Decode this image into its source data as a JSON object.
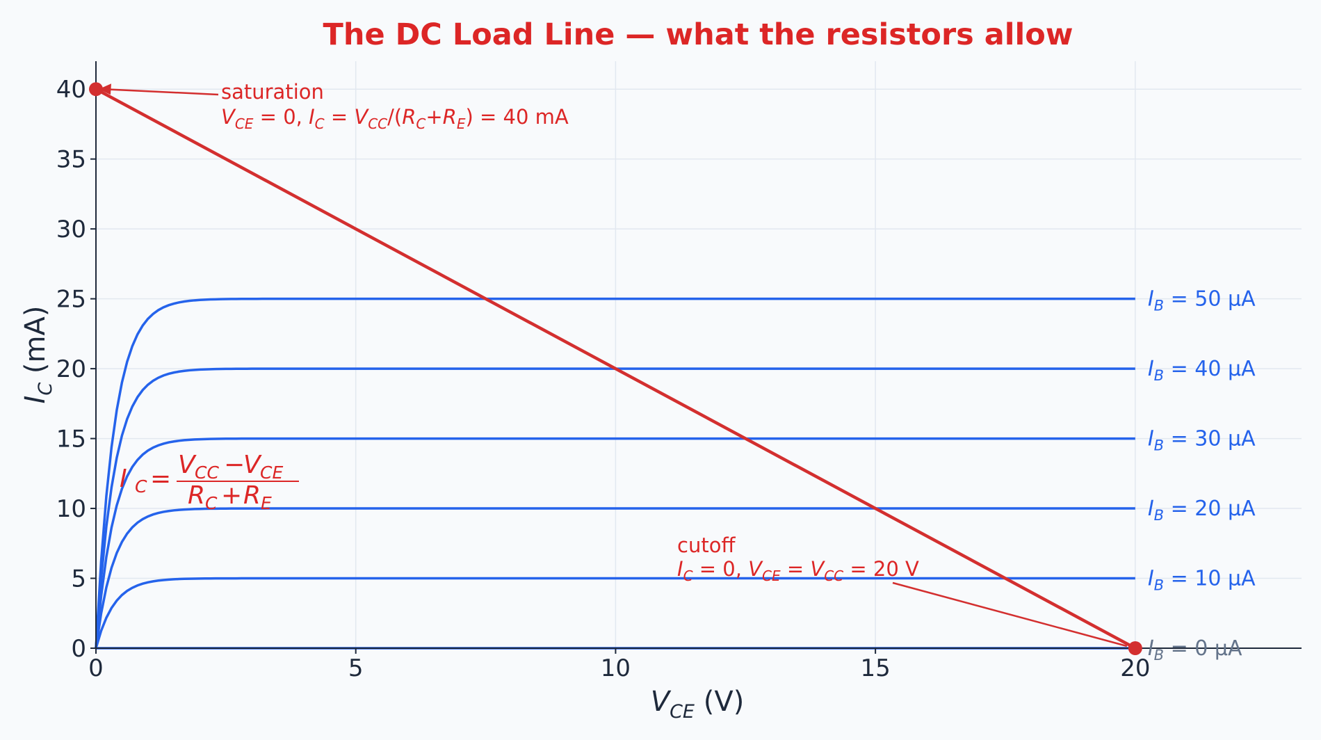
{
  "chart_data": {
    "type": "line",
    "title": "The DC Load Line — what the resistors allow",
    "xlabel_var": "V",
    "xlabel_sub": "CE",
    "xlabel_unit": "(V)",
    "ylabel_var": "I",
    "ylabel_sub": "C",
    "ylabel_unit": "(mA)",
    "xlim": [
      0,
      23.2
    ],
    "ylim": [
      0,
      42
    ],
    "xticks": [
      0,
      5,
      10,
      15,
      20
    ],
    "yticks": [
      0,
      5,
      10,
      15,
      20,
      25,
      30,
      35,
      40
    ],
    "grid": true,
    "colors": {
      "title": "#dc2626",
      "load_line": "#d32f2f",
      "curves": "#2563eb",
      "zero_curve": "#64748b",
      "grid": "#e2e8f0",
      "axis": "#1e293b"
    },
    "vcc": 20,
    "ic_sat": 40,
    "series": [
      {
        "name": "I_B = 0 µA",
        "ib_uA": 0,
        "ic_sat_mA": 0
      },
      {
        "name": "I_B = 10 µA",
        "ib_uA": 10,
        "ic_sat_mA": 5
      },
      {
        "name": "I_B = 20 µA",
        "ib_uA": 20,
        "ic_sat_mA": 10
      },
      {
        "name": "I_B = 30 µA",
        "ib_uA": 30,
        "ic_sat_mA": 15
      },
      {
        "name": "I_B = 40 µA",
        "ib_uA": 40,
        "ic_sat_mA": 20
      },
      {
        "name": "I_B = 50 µA",
        "ib_uA": 50,
        "ic_sat_mA": 25
      }
    ],
    "curve_x_range": [
      0,
      20
    ],
    "curve_knee_time_constant": 0.35,
    "load_line": {
      "x": [
        0,
        20
      ],
      "y": [
        40,
        0
      ]
    },
    "points": [
      {
        "name": "saturation",
        "x": 0,
        "y": 40
      },
      {
        "name": "cutoff",
        "x": 20,
        "y": 0
      }
    ],
    "annotations": {
      "saturation_title": "saturation",
      "saturation_detail": "V_CE = 0,  I_C = V_CC/(R_C+R_E) = 40 mA",
      "cutoff_title": "cutoff",
      "cutoff_detail": "I_C = 0,  V_CE = V_CC = 20 V",
      "formula": "I_C = (V_CC − V_CE) / (R_C + R_E)"
    }
  }
}
